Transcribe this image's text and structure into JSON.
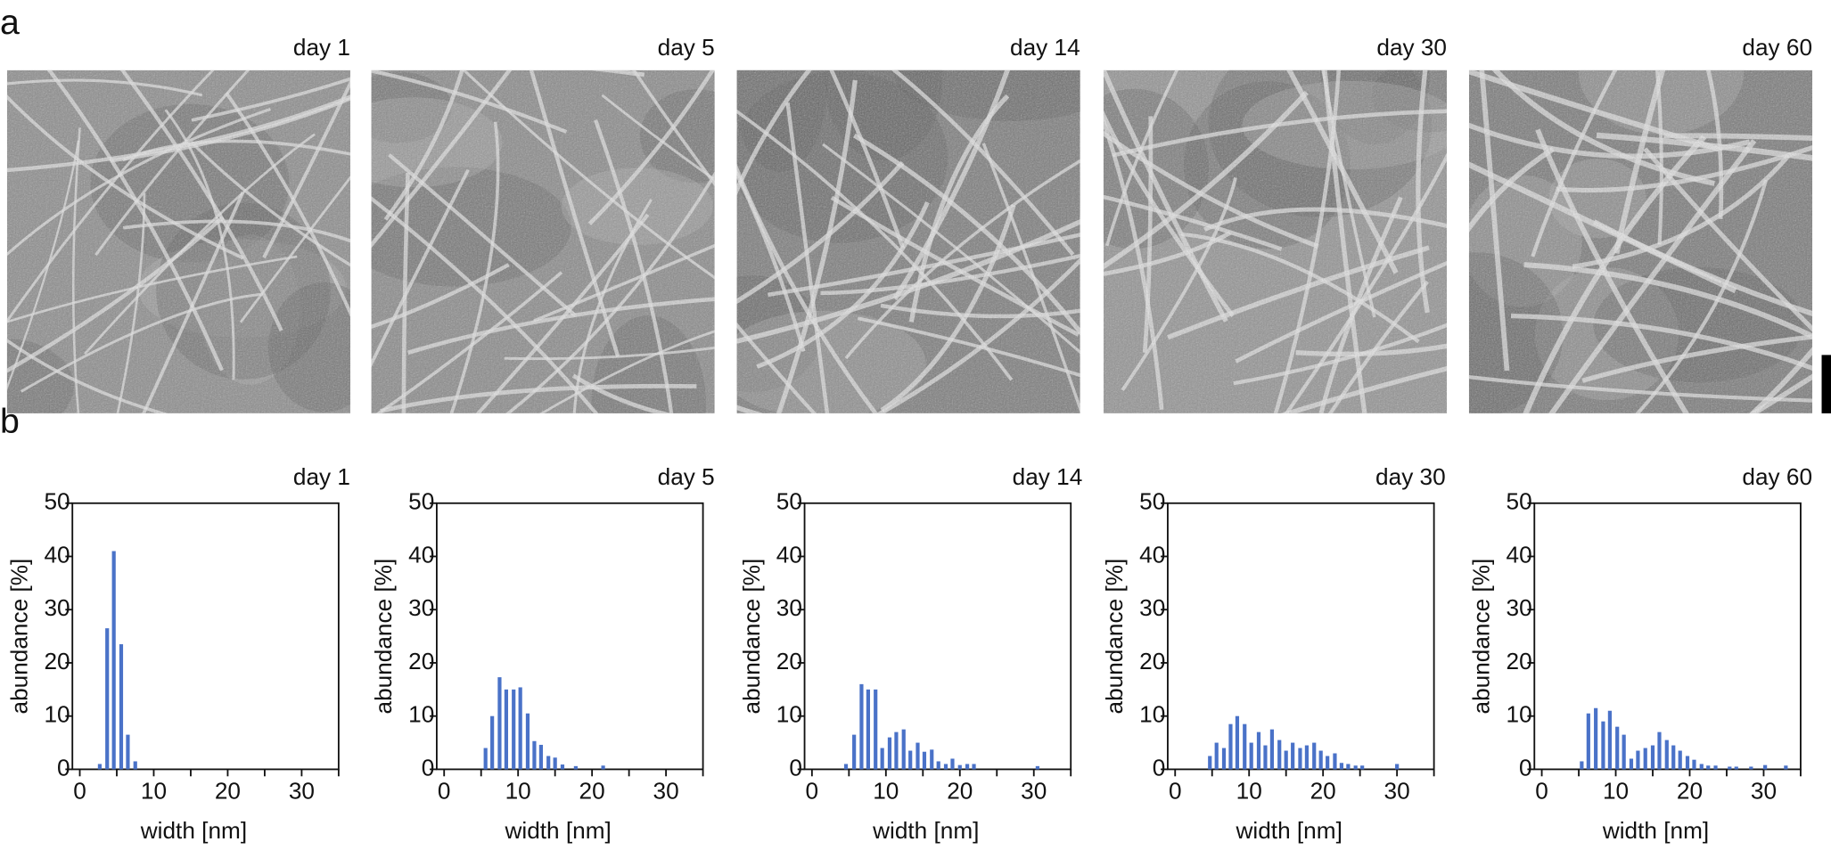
{
  "panel_labels": [
    "a",
    "b"
  ],
  "images": [
    {
      "title": "day 1"
    },
    {
      "title": "day 5"
    },
    {
      "title": "day 14"
    },
    {
      "title": "day 30"
    },
    {
      "title": "day 60"
    }
  ],
  "chart_data": [
    {
      "type": "bar",
      "title": "day 1",
      "xlabel": "width [nm]",
      "ylabel": "abundance [%]",
      "color": "#4a72c8",
      "x": [
        2.7,
        3.7,
        4.6,
        5.6,
        6.5,
        7.5
      ],
      "values": [
        1,
        26.5,
        41,
        23.5,
        6.5,
        1.5
      ],
      "xlim": [
        -1,
        35
      ],
      "xticks": [
        0,
        10,
        20,
        30
      ],
      "xminor": [
        5,
        15,
        25,
        35
      ],
      "ylim": [
        0,
        50
      ],
      "yticks": [
        0,
        10,
        20,
        30,
        40,
        50
      ]
    },
    {
      "type": "bar",
      "title": "day 5",
      "xlabel": "width [nm]",
      "ylabel": "abundance [%]",
      "color": "#4a72c8",
      "x": [
        5.6,
        6.5,
        7.5,
        8.4,
        9.4,
        10.3,
        11.3,
        12.2,
        13.1,
        14.1,
        15.0,
        16.0,
        17.8,
        21.5
      ],
      "values": [
        4,
        10,
        17.3,
        15,
        15,
        15.4,
        10.5,
        5.3,
        4.6,
        2.5,
        2.2,
        0.9,
        0.6,
        0.7
      ],
      "xlim": [
        -1,
        35
      ],
      "xticks": [
        0,
        10,
        20,
        30
      ],
      "xminor": [
        5,
        15,
        25,
        35
      ],
      "ylim": [
        0,
        50
      ],
      "yticks": [
        0,
        10,
        20,
        30,
        40,
        50
      ]
    },
    {
      "type": "bar",
      "title": "day 14",
      "xlabel": "width [nm]",
      "ylabel": "abundance [%]",
      "color": "#4a72c8",
      "x": [
        4.6,
        5.7,
        6.7,
        7.6,
        8.6,
        9.5,
        10.5,
        11.4,
        12.4,
        13.3,
        14.3,
        15.2,
        16.2,
        17.1,
        18.1,
        19.0,
        20.0,
        21.0,
        21.9,
        30.5
      ],
      "values": [
        1,
        6.5,
        16,
        15,
        15,
        4,
        6,
        7,
        7.5,
        3.5,
        5,
        3.3,
        3.7,
        1.5,
        1,
        2,
        0.8,
        1,
        1,
        0.6
      ],
      "xlim": [
        -1,
        35
      ],
      "xticks": [
        0,
        10,
        20,
        30
      ],
      "xminor": [
        5,
        15,
        25,
        35
      ],
      "ylim": [
        0,
        50
      ],
      "yticks": [
        0,
        10,
        20,
        30,
        40,
        50
      ]
    },
    {
      "type": "bar",
      "title": "day 30",
      "xlabel": "width [nm]",
      "ylabel": "abundance [%]",
      "color": "#4a72c8",
      "x": [
        4.7,
        5.6,
        6.6,
        7.5,
        8.4,
        9.4,
        10.3,
        11.3,
        12.2,
        13.1,
        14.1,
        15.0,
        15.9,
        16.9,
        17.8,
        18.8,
        19.7,
        20.6,
        21.6,
        22.5,
        23.4,
        24.4,
        25.3,
        30.0
      ],
      "values": [
        2.5,
        5,
        4,
        8.5,
        10,
        8.5,
        5,
        7,
        4.5,
        7.5,
        5.5,
        3.5,
        5,
        4,
        4.5,
        5,
        3.5,
        2.5,
        3,
        1.2,
        1,
        0.7,
        0.7,
        1
      ],
      "xlim": [
        -1,
        35
      ],
      "xticks": [
        0,
        10,
        20,
        30
      ],
      "xminor": [
        5,
        15,
        25,
        35
      ],
      "ylim": [
        0,
        50
      ],
      "yticks": [
        0,
        10,
        20,
        30,
        40,
        50
      ]
    },
    {
      "type": "bar",
      "title": "day 60",
      "xlabel": "width [nm]",
      "ylabel": "abundance [%]",
      "color": "#4a72c8",
      "x": [
        5.4,
        6.3,
        7.3,
        8.3,
        9.2,
        10.2,
        11.1,
        12.1,
        13.0,
        14.0,
        15.0,
        15.9,
        16.9,
        17.8,
        18.7,
        19.7,
        20.6,
        21.6,
        22.5,
        23.5,
        25.4,
        26.3,
        28.3,
        30.2,
        33.0
      ],
      "values": [
        1.5,
        10.5,
        11.5,
        9,
        11,
        8,
        6.5,
        2,
        3.5,
        4,
        4.5,
        7,
        5.5,
        4.5,
        3.5,
        2.5,
        1.8,
        1,
        0.7,
        0.7,
        0.5,
        0.5,
        0.5,
        0.8,
        0.7
      ],
      "xlim": [
        -1,
        35
      ],
      "xticks": [
        0,
        10,
        20,
        30
      ],
      "xminor": [
        5,
        15,
        25,
        35
      ],
      "ylim": [
        0,
        50
      ],
      "yticks": [
        0,
        10,
        20,
        30,
        40,
        50
      ]
    }
  ]
}
